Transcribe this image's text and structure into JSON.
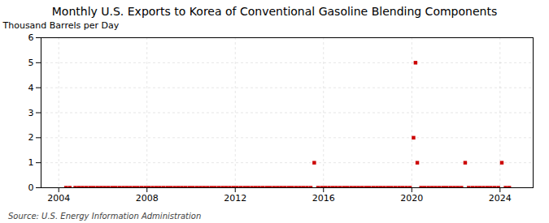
{
  "chart_data": {
    "type": "scatter",
    "title": "Monthly U.S. Exports to Korea of Conventional Gasoline Blending Components",
    "ylabel": "Thousand Barrels per Day",
    "source": "Source: U.S. Energy Information Administration",
    "color": "#cc0000",
    "marker": "square",
    "grid": true,
    "xlim": [
      2003.2,
      2025.5
    ],
    "ylim": [
      0,
      6
    ],
    "xticks": [
      2004,
      2008,
      2012,
      2016,
      2020,
      2024
    ],
    "yticks": [
      0,
      1,
      2,
      3,
      4,
      5,
      6
    ],
    "x": [
      2004.33,
      2004.5,
      2004.75,
      2004.92,
      2005.08,
      2005.25,
      2005.42,
      2005.58,
      2005.75,
      2005.92,
      2006.08,
      2006.25,
      2006.42,
      2006.58,
      2006.75,
      2006.92,
      2007.08,
      2007.25,
      2007.42,
      2007.58,
      2007.75,
      2007.92,
      2008.08,
      2008.25,
      2008.42,
      2008.58,
      2008.75,
      2008.92,
      2009.08,
      2009.25,
      2009.42,
      2009.58,
      2009.75,
      2009.92,
      2010.08,
      2010.25,
      2010.42,
      2010.58,
      2010.75,
      2010.92,
      2011.08,
      2011.25,
      2011.42,
      2011.58,
      2011.75,
      2011.92,
      2012.08,
      2012.25,
      2012.42,
      2012.58,
      2012.75,
      2012.92,
      2013.08,
      2013.25,
      2013.42,
      2013.58,
      2013.75,
      2013.92,
      2014.08,
      2014.25,
      2014.42,
      2014.58,
      2014.75,
      2014.92,
      2015.08,
      2015.25,
      2015.42,
      2015.58,
      2015.75,
      2015.92,
      2016.08,
      2016.25,
      2016.42,
      2016.58,
      2016.75,
      2016.92,
      2017.08,
      2017.25,
      2017.42,
      2017.58,
      2017.75,
      2017.92,
      2018.08,
      2018.25,
      2018.42,
      2018.58,
      2018.75,
      2018.92,
      2019.08,
      2019.25,
      2019.42,
      2019.58,
      2019.75,
      2019.92,
      2020.08,
      2020.17,
      2020.25,
      2020.42,
      2020.58,
      2020.75,
      2020.92,
      2021.08,
      2021.25,
      2021.42,
      2021.58,
      2021.75,
      2021.92,
      2022.08,
      2022.25,
      2022.42,
      2022.58,
      2022.75,
      2022.92,
      2023.08,
      2023.25,
      2023.42,
      2023.58,
      2023.75,
      2023.92,
      2024.08,
      2024.25,
      2024.42
    ],
    "values": [
      0.0,
      0.0,
      0.0,
      0.0,
      0.0,
      0.0,
      0.0,
      0.0,
      0.0,
      0.0,
      0.0,
      0.0,
      0.0,
      0.0,
      0.0,
      0.0,
      0.0,
      0.0,
      0.0,
      0.0,
      0.0,
      0.0,
      0.0,
      0.0,
      0.0,
      0.0,
      0.0,
      0.0,
      0.0,
      0.0,
      0.0,
      0.0,
      0.0,
      0.0,
      0.0,
      0.0,
      0.0,
      0.0,
      0.0,
      0.0,
      0.0,
      0.0,
      0.0,
      0.0,
      0.0,
      0.0,
      0.0,
      0.0,
      0.0,
      0.0,
      0.0,
      0.0,
      0.0,
      0.0,
      0.0,
      0.0,
      0.0,
      0.0,
      0.0,
      0.0,
      0.0,
      0.0,
      0.0,
      0.0,
      0.0,
      0.0,
      0.0,
      1.0,
      0.0,
      0.0,
      0.0,
      0.0,
      0.0,
      0.0,
      0.0,
      0.0,
      0.0,
      0.0,
      0.0,
      0.0,
      0.0,
      0.0,
      0.0,
      0.0,
      0.0,
      0.0,
      0.0,
      0.0,
      0.0,
      0.0,
      0.0,
      0.0,
      0.0,
      0.0,
      2.0,
      5.0,
      1.0,
      0.0,
      0.0,
      0.0,
      0.0,
      0.0,
      0.0,
      0.0,
      0.0,
      0.0,
      0.0,
      0.0,
      0.0,
      1.0,
      0.0,
      0.0,
      0.0,
      0.0,
      0.0,
      0.0,
      0.0,
      0.0,
      0.0,
      1.0,
      0.0,
      0.0
    ]
  }
}
